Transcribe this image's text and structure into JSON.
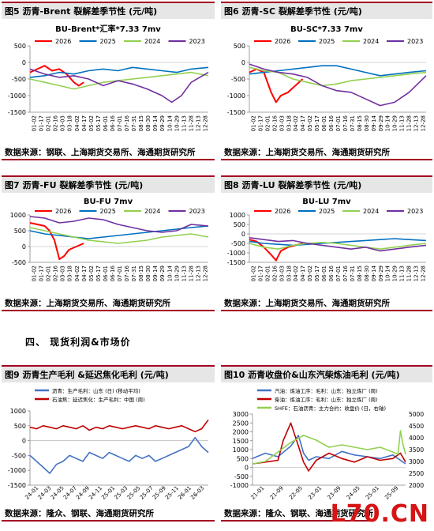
{
  "section_heading": "四、 现货利润&市场价",
  "watermark": "L70.CN",
  "chart_data": [
    {
      "id": "fig5",
      "type": "line",
      "fig_title": "图5    沥青-Brent 裂解差季节性 (元/吨)",
      "title": "BU-Brent*汇率*7.33 7mv",
      "source": "数据来源：钢联、上海期货交易所、海通期货研究所",
      "ylim": [
        -1500,
        500
      ],
      "yticks": [
        500,
        0,
        -500,
        -1000,
        -1500
      ],
      "xticks": [
        "01-02",
        "01-17",
        "02-01",
        "02-16",
        "03-03",
        "03-18",
        "04-02",
        "04-17",
        "05-02",
        "05-17",
        "06-01",
        "06-16",
        "07-01",
        "07-16",
        "07-31",
        "08-15",
        "08-30",
        "09-14",
        "09-29",
        "10-14",
        "10-29",
        "11-13",
        "11-28",
        "12-13",
        "12-28"
      ],
      "x_range": [
        0,
        365
      ],
      "legend": "top",
      "series": [
        {
          "name": "2026",
          "color": "#ff0000",
          "x": [
            0,
            15,
            30,
            45,
            60,
            75,
            90,
            100,
            110
          ],
          "y": [
            -300,
            -200,
            -100,
            -250,
            -200,
            -350,
            -600,
            -700,
            -600
          ]
        },
        {
          "name": "2025",
          "color": "#0070c0",
          "x": [
            0,
            30,
            60,
            90,
            120,
            150,
            180,
            210,
            240,
            270,
            300,
            330,
            365
          ],
          "y": [
            -450,
            -400,
            -300,
            -350,
            -250,
            -200,
            -250,
            -150,
            -200,
            -250,
            -300,
            -200,
            -150
          ]
        },
        {
          "name": "2024",
          "color": "#92d050",
          "x": [
            0,
            30,
            60,
            90,
            120,
            150,
            180,
            210,
            240,
            270,
            300,
            330,
            365
          ],
          "y": [
            -500,
            -600,
            -700,
            -800,
            -700,
            -600,
            -550,
            -500,
            -450,
            -400,
            -350,
            -300,
            -400
          ]
        },
        {
          "name": "2023",
          "color": "#7030a0",
          "x": [
            0,
            30,
            60,
            90,
            120,
            150,
            180,
            210,
            240,
            270,
            290,
            310,
            330,
            365
          ],
          "y": [
            -200,
            -350,
            -450,
            -400,
            -500,
            -700,
            -550,
            -650,
            -800,
            -1000,
            -1200,
            -1000,
            -600,
            -300
          ]
        }
      ]
    },
    {
      "id": "fig6",
      "type": "line",
      "fig_title": "图6    沥青-SC 裂解差季节性 (元/吨)",
      "title": "BU-SC*7.33 7mv",
      "source": "数据来源：上海期货交易所、海通期货研究所",
      "ylim": [
        -1500,
        500
      ],
      "yticks": [
        500,
        0,
        -500,
        -1000,
        -1500
      ],
      "xticks": [
        "01-02",
        "01-17",
        "02-01",
        "02-16",
        "03-03",
        "03-18",
        "04-02",
        "04-17",
        "05-02",
        "05-17",
        "06-01",
        "06-16",
        "07-01",
        "07-16",
        "07-31",
        "08-15",
        "08-30",
        "09-14",
        "09-29",
        "10-14",
        "10-29",
        "11-13",
        "11-28",
        "12-13",
        "12-28"
      ],
      "x_range": [
        0,
        365
      ],
      "legend": "top",
      "series": [
        {
          "name": "2026",
          "color": "#ff0000",
          "x": [
            0,
            15,
            30,
            45,
            55,
            65,
            80,
            95,
            110
          ],
          "y": [
            -300,
            -200,
            -300,
            -900,
            -1200,
            -1000,
            -900,
            -700,
            -500
          ]
        },
        {
          "name": "2025",
          "color": "#0070c0",
          "x": [
            0,
            30,
            60,
            90,
            120,
            150,
            180,
            210,
            240,
            270,
            300,
            330,
            365
          ],
          "y": [
            -350,
            -300,
            -250,
            -200,
            -150,
            -100,
            -100,
            -200,
            -300,
            -400,
            -350,
            -300,
            -250
          ]
        },
        {
          "name": "2024",
          "color": "#92d050",
          "x": [
            0,
            30,
            60,
            90,
            120,
            150,
            180,
            210,
            240,
            270,
            300,
            330,
            365
          ],
          "y": [
            -150,
            -250,
            -300,
            -500,
            -600,
            -700,
            -650,
            -550,
            -500,
            -450,
            -400,
            -350,
            -300
          ]
        },
        {
          "name": "2023",
          "color": "#7030a0",
          "x": [
            0,
            30,
            60,
            90,
            120,
            150,
            180,
            210,
            240,
            270,
            300,
            330,
            365
          ],
          "y": [
            -50,
            -200,
            -300,
            -350,
            -450,
            -700,
            -850,
            -900,
            -1100,
            -1300,
            -1200,
            -900,
            -400
          ]
        }
      ]
    },
    {
      "id": "fig7",
      "type": "line",
      "fig_title": "图7    沥青-FU 裂解差季节性 (元/吨)",
      "title": "BU-FU 7mv",
      "source": "数据来源：上海期货交易所、海通期货研究所",
      "ylim": [
        -500,
        1000
      ],
      "yticks": [
        1000,
        500,
        0,
        -500
      ],
      "xticks": [
        "01-02",
        "01-17",
        "02-01",
        "02-16",
        "03-03",
        "03-18",
        "04-02",
        "04-17",
        "05-02",
        "05-17",
        "06-01",
        "06-16",
        "07-01",
        "07-16",
        "07-31",
        "08-15",
        "08-30",
        "09-14",
        "09-29",
        "10-14",
        "10-29",
        "11-13",
        "11-28",
        "12-13",
        "12-28"
      ],
      "x_range": [
        0,
        365
      ],
      "legend": "top",
      "series": [
        {
          "name": "2026",
          "color": "#ff0000",
          "x": [
            0,
            15,
            30,
            40,
            50,
            60,
            70,
            80,
            95,
            110
          ],
          "y": [
            750,
            700,
            650,
            500,
            200,
            -400,
            -300,
            -100,
            0,
            100
          ]
        },
        {
          "name": "2025",
          "color": "#0070c0",
          "x": [
            0,
            30,
            60,
            90,
            120,
            150,
            180,
            210,
            240,
            270,
            300,
            330,
            365
          ],
          "y": [
            500,
            400,
            350,
            300,
            250,
            300,
            350,
            400,
            450,
            500,
            550,
            600,
            650
          ]
        },
        {
          "name": "2024",
          "color": "#92d050",
          "x": [
            0,
            30,
            60,
            90,
            120,
            150,
            180,
            210,
            240,
            270,
            300,
            330,
            365
          ],
          "y": [
            600,
            500,
            400,
            300,
            200,
            150,
            100,
            150,
            200,
            300,
            350,
            400,
            300
          ]
        },
        {
          "name": "2023",
          "color": "#7030a0",
          "x": [
            0,
            30,
            60,
            90,
            120,
            150,
            180,
            210,
            240,
            270,
            300,
            330,
            365
          ],
          "y": [
            950,
            900,
            750,
            800,
            900,
            850,
            700,
            600,
            500,
            450,
            500,
            700,
            650
          ]
        }
      ]
    },
    {
      "id": "fig8",
      "type": "line",
      "fig_title": "图8    沥青-LU 裂解差季节性 (元/吨)",
      "title": "BU-LU 7mv",
      "source": "数据来源：上海期货交易所、海通期货研究所",
      "ylim": [
        -1500,
        1000
      ],
      "yticks": [
        1000,
        500,
        0,
        -500,
        -1000,
        -1500
      ],
      "xticks": [
        "01-02",
        "01-17",
        "02-01",
        "02-16",
        "03-03",
        "03-18",
        "04-02",
        "04-17",
        "05-02",
        "05-17",
        "06-01",
        "06-16",
        "07-01",
        "07-16",
        "07-31",
        "08-15",
        "08-30",
        "09-14",
        "09-29",
        "10-14",
        "10-29",
        "11-13",
        "11-28",
        "12-13",
        "12-28"
      ],
      "x_range": [
        0,
        365
      ],
      "legend": "top",
      "series": [
        {
          "name": "2026",
          "color": "#ff0000",
          "x": [
            0,
            15,
            30,
            45,
            55,
            65,
            80,
            95,
            110
          ],
          "y": [
            -300,
            -400,
            -700,
            -1100,
            -1400,
            -900,
            -700,
            -600,
            -500
          ]
        },
        {
          "name": "2025",
          "color": "#0070c0",
          "x": [
            0,
            30,
            60,
            90,
            120,
            150,
            180,
            210,
            240,
            270,
            300,
            330,
            365
          ],
          "y": [
            -400,
            -500,
            -550,
            -600,
            -550,
            -500,
            -450,
            -400,
            -350,
            -300,
            -250,
            -300,
            -350
          ]
        },
        {
          "name": "2024",
          "color": "#92d050",
          "x": [
            0,
            30,
            60,
            90,
            120,
            150,
            180,
            210,
            240,
            270,
            300,
            330,
            365
          ],
          "y": [
            -500,
            -700,
            -800,
            -600,
            -500,
            -450,
            -500,
            -600,
            -700,
            -800,
            -700,
            -600,
            -500
          ]
        },
        {
          "name": "2023",
          "color": "#7030a0",
          "x": [
            0,
            30,
            60,
            90,
            120,
            150,
            180,
            210,
            240,
            270,
            300,
            330,
            365
          ],
          "y": [
            -200,
            -300,
            -400,
            -350,
            -500,
            -600,
            -700,
            -800,
            -700,
            -900,
            -800,
            -700,
            -600
          ]
        }
      ]
    },
    {
      "id": "fig9",
      "type": "line",
      "fig_title": "图9    沥青生产毛利 &延迟焦化毛利 (元/吨)",
      "title": "",
      "source": "数据来源：隆众、钢联、海通期货研究所",
      "ylim": [
        -1500,
        1000
      ],
      "yticks": [
        1000,
        500,
        0,
        -500,
        -1000,
        -1500
      ],
      "xticks": [
        "24-01",
        "24-03",
        "24-05",
        "24-07",
        "24-09",
        "24-11",
        "25-01",
        "25-03",
        "25-05",
        "25-07",
        "25-09",
        "25-11",
        "26-01",
        "26-03"
      ],
      "x_range": [
        0,
        27
      ],
      "legend": "top-left",
      "series": [
        {
          "name": "沥青：生产毛利：山东 (日) (移动平均)",
          "color": "#4472c4",
          "x": [
            0,
            1,
            2,
            3,
            4,
            5,
            6,
            7,
            8,
            9,
            10,
            11,
            12,
            13,
            14,
            15,
            16,
            17,
            18,
            19,
            20,
            21,
            22,
            23,
            24,
            25,
            26,
            27
          ],
          "y": [
            -500,
            -700,
            -900,
            -1100,
            -800,
            -700,
            -500,
            -600,
            -700,
            -400,
            -500,
            -600,
            -400,
            -500,
            -600,
            -700,
            -500,
            -600,
            -500,
            -700,
            -600,
            -500,
            -400,
            -300,
            -200,
            100,
            -200,
            -400
          ]
        },
        {
          "name": "石油焦：延迟焦化：生产毛利：中国 (周)",
          "color": "#c00000",
          "x": [
            0,
            1,
            2,
            3,
            4,
            5,
            6,
            7,
            8,
            9,
            10,
            11,
            12,
            13,
            14,
            15,
            16,
            17,
            18,
            19,
            20,
            21,
            22,
            23,
            24,
            25,
            26,
            27
          ],
          "y": [
            450,
            400,
            500,
            450,
            400,
            500,
            450,
            400,
            500,
            350,
            450,
            400,
            500,
            450,
            400,
            450,
            500,
            450,
            400,
            500,
            450,
            400,
            450,
            500,
            400,
            300,
            400,
            700
          ]
        }
      ]
    },
    {
      "id": "fig10",
      "type": "line",
      "fig_title": "图10   沥青收盘价&山东汽柴炼油毛利 (元/吨)",
      "title": "",
      "source": "数据来源：隆众、钢联、海通期货研究所",
      "ylim": [
        -1000,
        3000
      ],
      "yticks": [
        3000,
        2500,
        2000,
        1500,
        1000,
        500,
        0,
        -500,
        -1000
      ],
      "y2lim": [
        2000,
        5000
      ],
      "y2ticks": [
        5000,
        4500,
        4000,
        3500,
        3000,
        2500,
        2000
      ],
      "xticks": [
        "21-01",
        "21-09",
        "22-05",
        "23-01",
        "23-09",
        "24-05",
        "25-01",
        "25-09"
      ],
      "x_range": [
        0,
        60
      ],
      "legend": "top-left",
      "series": [
        {
          "name": "汽油：炼油工序：毛利：山东：独立炼厂 (周)",
          "color": "#4472c4",
          "axis": "left",
          "x": [
            0,
            5,
            10,
            15,
            18,
            20,
            22,
            25,
            30,
            35,
            40,
            45,
            50,
            55,
            58,
            60
          ],
          "y": [
            500,
            800,
            600,
            1200,
            1800,
            800,
            400,
            600,
            500,
            900,
            700,
            600,
            500,
            700,
            400,
            200
          ]
        },
        {
          "name": "柴油：炼油工序：毛利：山东：独立炼厂 (周)",
          "color": "#c00000",
          "axis": "left",
          "x": [
            0,
            5,
            10,
            12,
            15,
            18,
            20,
            22,
            25,
            30,
            35,
            40,
            45,
            50,
            55,
            58,
            60
          ],
          "y": [
            200,
            300,
            400,
            1500,
            2500,
            1200,
            300,
            -200,
            400,
            800,
            500,
            300,
            600,
            400,
            500,
            800,
            300
          ]
        },
        {
          "name": "SHFE：石油沥青：主力合约：收盘价 (日，右轴)",
          "color": "#92d050",
          "axis": "right",
          "x": [
            0,
            5,
            10,
            15,
            20,
            25,
            30,
            35,
            40,
            45,
            50,
            55,
            57,
            58,
            59,
            60
          ],
          "y": [
            2900,
            3000,
            3400,
            3800,
            4100,
            3900,
            3600,
            3700,
            3600,
            3500,
            3600,
            3400,
            3300,
            4300,
            3700,
            3300
          ]
        }
      ]
    }
  ]
}
